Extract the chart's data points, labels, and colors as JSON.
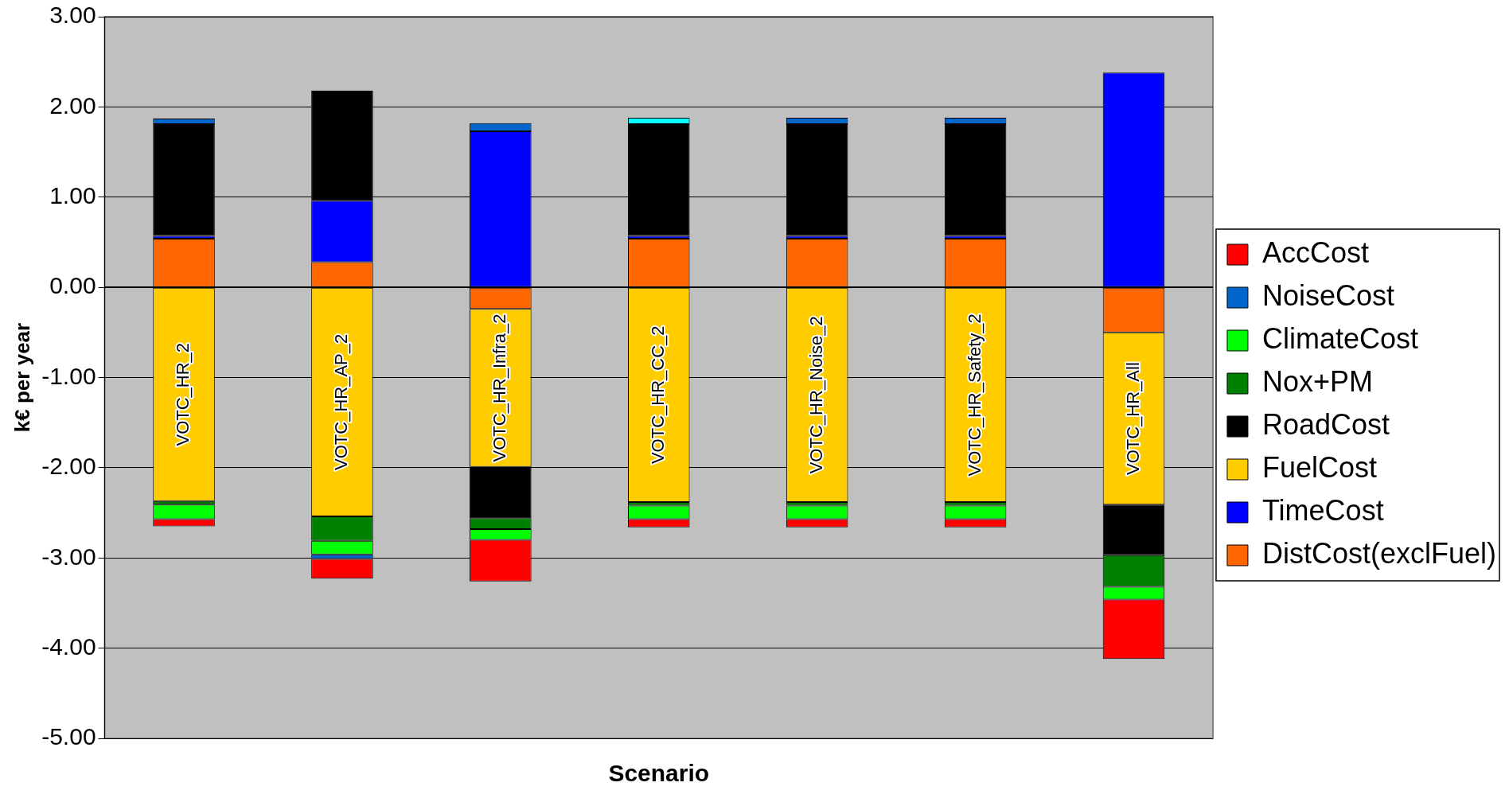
{
  "chart_data": {
    "type": "bar",
    "stacked": true,
    "categories": [
      "VOTC_HR_2",
      "VOTC_HR_AP_2",
      "VOTC_HR_Infra_2",
      "VOTC_HR_CC_2",
      "VOTC_HR_Noise_2",
      "VOTC_HR_Safety_2",
      "VOTC_HR_All"
    ],
    "xlabel": "Scenario",
    "ylabel": "k€ per year",
    "ylim": [
      -5,
      3
    ],
    "yticks": [
      {
        "value": -5,
        "label": "-5.00"
      },
      {
        "value": -4,
        "label": "-4.00"
      },
      {
        "value": -3,
        "label": "-3.00"
      },
      {
        "value": -2,
        "label": "-2.00"
      },
      {
        "value": -1,
        "label": "-1.00"
      },
      {
        "value": 0,
        "label": "0.00"
      },
      {
        "value": 1,
        "label": "1.00"
      },
      {
        "value": 2,
        "label": "2.00"
      },
      {
        "value": 3,
        "label": "3.00"
      }
    ],
    "grid": "y",
    "legend": "right",
    "tick_labels": "y",
    "series": [
      {
        "name": "DistCost(exclFuel)",
        "color": "#ff6600",
        "values": [
          0.54,
          0.28,
          -0.24,
          0.54,
          0.54,
          0.54,
          -0.5
        ]
      },
      {
        "name": "TimeCost",
        "color": "#0000ff",
        "values": [
          0.03,
          0.68,
          1.73,
          0.03,
          0.03,
          0.03,
          2.38
        ]
      },
      {
        "name": "FuelCost",
        "color": "#ffcc00",
        "values": [
          -2.37,
          -2.54,
          -1.75,
          -2.38,
          -2.38,
          -2.38,
          -1.91
        ]
      },
      {
        "name": "RoadCost",
        "color": "#000000",
        "values": [
          1.24,
          1.22,
          -0.57,
          1.24,
          1.24,
          1.24,
          -0.56
        ]
      },
      {
        "name": "Nox+PM",
        "color": "#008000",
        "values": [
          -0.04,
          -0.27,
          -0.12,
          -0.04,
          -0.04,
          -0.04,
          -0.35
        ]
      },
      {
        "name": "ClimateCost",
        "color": "#00ff00",
        "values": [
          -0.16,
          -0.15,
          -0.12,
          -0.15,
          -0.15,
          -0.15,
          -0.14
        ]
      },
      {
        "name": "NoiseCost",
        "color": "#0066cc",
        "colors": [
          "#0066cc",
          "#0066cc",
          "#0066cc",
          "#00ffff",
          "#0066cc",
          "#0066cc",
          "#0066cc"
        ],
        "values": [
          0.06,
          -0.05,
          0.09,
          0.07,
          0.07,
          0.07,
          null
        ]
      },
      {
        "name": "AccCost",
        "color": "#ff0000",
        "values": [
          -0.08,
          -0.22,
          -0.46,
          -0.09,
          -0.09,
          -0.09,
          -0.66
        ]
      }
    ]
  }
}
